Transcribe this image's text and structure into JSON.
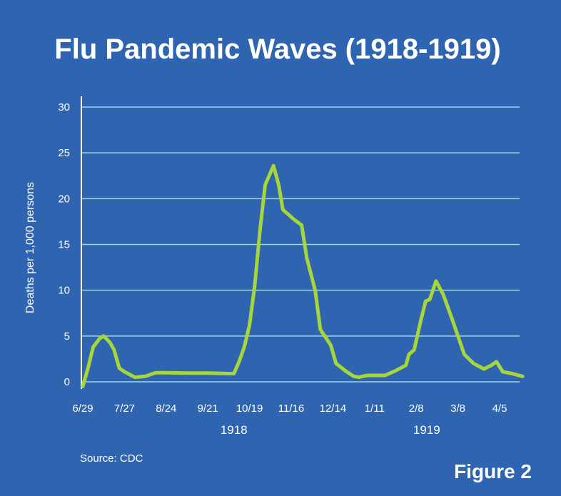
{
  "chart_data": {
    "type": "line",
    "title": "Flu Pandemic Waves (1918-1919)",
    "ylabel": "Deaths per 1,000 persons",
    "ylim": [
      0,
      30
    ],
    "yticks": [
      0,
      5,
      10,
      15,
      20,
      25,
      30
    ],
    "grid": true,
    "line_color": "#a6d63a",
    "grid_color": "#9fd6ee",
    "xtick_labels": [
      "6/29",
      "7/27",
      "8/24",
      "9/21",
      "10/19",
      "11/16",
      "12/14",
      "1/11",
      "2/8",
      "3/8",
      "4/5"
    ],
    "year_labels": [
      {
        "label": "1918",
        "at_week": 14.5
      },
      {
        "label": "1919",
        "at_week": 33
      }
    ],
    "series": [
      {
        "points": [
          [
            0,
            -0.5
          ],
          [
            0.5,
            1.5
          ],
          [
            1,
            3.8
          ],
          [
            1.6,
            4.7
          ],
          [
            2,
            5.0
          ],
          [
            2.6,
            4.3
          ],
          [
            3,
            3.5
          ],
          [
            3.5,
            1.5
          ],
          [
            4,
            1.1
          ],
          [
            5,
            0.5
          ],
          [
            6,
            0.6
          ],
          [
            7,
            1.0
          ],
          [
            8,
            1.0
          ],
          [
            10,
            0.95
          ],
          [
            12,
            0.95
          ],
          [
            14,
            0.9
          ],
          [
            14.5,
            0.9
          ],
          [
            15,
            2.2
          ],
          [
            15.5,
            3.8
          ],
          [
            16,
            6.2
          ],
          [
            16.5,
            10.5
          ],
          [
            17,
            16.5
          ],
          [
            17.5,
            21.5
          ],
          [
            18,
            22.8
          ],
          [
            18.3,
            23.6
          ],
          [
            18.8,
            21.5
          ],
          [
            19.2,
            18.8
          ],
          [
            20.3,
            17.7
          ],
          [
            21,
            17.1
          ],
          [
            21.5,
            13.5
          ],
          [
            22.3,
            10.0
          ],
          [
            22.8,
            5.7
          ],
          [
            23.8,
            4.0
          ],
          [
            24.3,
            2.0
          ],
          [
            25.2,
            1.2
          ],
          [
            26,
            0.6
          ],
          [
            26.5,
            0.5
          ],
          [
            27.3,
            0.7
          ],
          [
            28,
            0.7
          ],
          [
            29,
            0.7
          ],
          [
            30,
            1.2
          ],
          [
            31,
            1.8
          ],
          [
            31.3,
            3.0
          ],
          [
            31.8,
            3.5
          ],
          [
            32.4,
            6.5
          ],
          [
            32.9,
            8.8
          ],
          [
            33.3,
            9.0
          ],
          [
            33.9,
            11.0
          ],
          [
            34.6,
            9.5
          ],
          [
            35.3,
            7.3
          ],
          [
            36,
            5.0
          ],
          [
            36.6,
            3.0
          ],
          [
            37.5,
            2.0
          ],
          [
            38.5,
            1.4
          ],
          [
            39.2,
            1.8
          ],
          [
            39.7,
            2.2
          ],
          [
            40.3,
            1.1
          ],
          [
            41.2,
            0.9
          ],
          [
            42.2,
            0.6
          ]
        ]
      }
    ]
  },
  "source": "Source: CDC",
  "figure_label": "Figure 2"
}
